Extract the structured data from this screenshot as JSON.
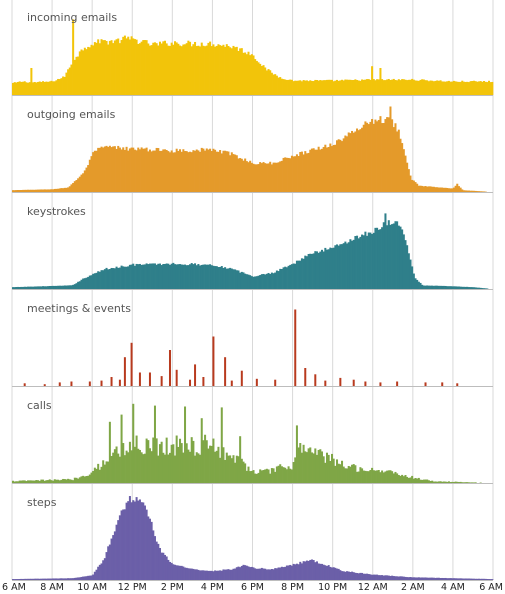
{
  "chart_data": {
    "type": "bar",
    "x_unit": "hour of day",
    "x_range": [
      6,
      30
    ],
    "bin_minutes": 5,
    "grid": true,
    "x_ticks": [
      {
        "label": "6 AM",
        "value": 6
      },
      {
        "label": "8 AM",
        "value": 8
      },
      {
        "label": "10 AM",
        "value": 10
      },
      {
        "label": "12 PM",
        "value": 12
      },
      {
        "label": "2 PM",
        "value": 14
      },
      {
        "label": "4 PM",
        "value": 16
      },
      {
        "label": "6 PM",
        "value": 18
      },
      {
        "label": "8 PM",
        "value": 20
      },
      {
        "label": "10 PM",
        "value": 22
      },
      {
        "label": "12 AM",
        "value": 24
      },
      {
        "label": "2 AM",
        "value": 26
      },
      {
        "label": "4 AM",
        "value": 28
      },
      {
        "label": "6 AM",
        "value": 30
      }
    ],
    "series": [
      {
        "name": "incoming emails",
        "color": "#f2c40a",
        "shape": [
          [
            6,
            0.13
          ],
          [
            6.5,
            0.15
          ],
          [
            7,
            0.14
          ],
          [
            8,
            0.15
          ],
          [
            8.6,
            0.2
          ],
          [
            9.1,
            0.4
          ],
          [
            9.6,
            0.53
          ],
          [
            10.1,
            0.58
          ],
          [
            11,
            0.6
          ],
          [
            12,
            0.62
          ],
          [
            13,
            0.56
          ],
          [
            14,
            0.58
          ],
          [
            15,
            0.57
          ],
          [
            16,
            0.57
          ],
          [
            17,
            0.54
          ],
          [
            18,
            0.45
          ],
          [
            18.6,
            0.3
          ],
          [
            19.3,
            0.2
          ],
          [
            20,
            0.16
          ],
          [
            22,
            0.16
          ],
          [
            24,
            0.17
          ],
          [
            26,
            0.17
          ],
          [
            28,
            0.15
          ],
          [
            30,
            0.15
          ]
        ],
        "spikes": [
          [
            9.04,
            0.84
          ],
          [
            10.45,
            0.62
          ],
          [
            23.9,
            0.32
          ],
          [
            24.3,
            0.3
          ],
          [
            6.95,
            0.3
          ],
          [
            11.6,
            0.66
          ]
        ],
        "noise": 0.06
      },
      {
        "name": "outgoing emails",
        "color": "#e49a2a",
        "shape": [
          [
            6,
            0.02
          ],
          [
            8,
            0.03
          ],
          [
            8.8,
            0.05
          ],
          [
            9.6,
            0.22
          ],
          [
            10.1,
            0.45
          ],
          [
            10.6,
            0.5
          ],
          [
            12,
            0.48
          ],
          [
            14,
            0.46
          ],
          [
            16,
            0.47
          ],
          [
            17,
            0.42
          ],
          [
            18,
            0.32
          ],
          [
            19,
            0.32
          ],
          [
            20,
            0.4
          ],
          [
            21,
            0.47
          ],
          [
            22,
            0.53
          ],
          [
            23,
            0.66
          ],
          [
            23.6,
            0.76
          ],
          [
            24.2,
            0.81
          ],
          [
            24.9,
            0.8
          ],
          [
            25.3,
            0.68
          ],
          [
            25.6,
            0.45
          ],
          [
            25.9,
            0.15
          ],
          [
            26.3,
            0.07
          ],
          [
            28,
            0.04
          ],
          [
            28.2,
            0.09
          ],
          [
            28.5,
            0.02
          ],
          [
            30,
            0.0
          ]
        ],
        "spikes": [
          [
            24.8,
            0.95
          ]
        ],
        "noise": 0.05
      },
      {
        "name": "keystrokes",
        "color": "#2f7f8a",
        "shape": [
          [
            6,
            0.02
          ],
          [
            9,
            0.04
          ],
          [
            9.6,
            0.12
          ],
          [
            10.6,
            0.22
          ],
          [
            12,
            0.27
          ],
          [
            14,
            0.28
          ],
          [
            16,
            0.27
          ],
          [
            17,
            0.22
          ],
          [
            18,
            0.14
          ],
          [
            19,
            0.18
          ],
          [
            20,
            0.28
          ],
          [
            21,
            0.4
          ],
          [
            22,
            0.46
          ],
          [
            23,
            0.56
          ],
          [
            24,
            0.64
          ],
          [
            24.6,
            0.73
          ],
          [
            25.1,
            0.76
          ],
          [
            25.5,
            0.64
          ],
          [
            25.8,
            0.4
          ],
          [
            26.1,
            0.12
          ],
          [
            26.5,
            0.04
          ],
          [
            28,
            0.03
          ],
          [
            29,
            0.02
          ],
          [
            30,
            0.0
          ]
        ],
        "spikes": [
          [
            24.6,
            0.84
          ]
        ],
        "noise": 0.05
      },
      {
        "name": "meetings & events",
        "color": "#b83a1e",
        "shape": [
          [
            6,
            0.02
          ],
          [
            30,
            0.02
          ]
        ],
        "spikes": [
          [
            6.6,
            0.03
          ],
          [
            7.6,
            0.02
          ],
          [
            8.3,
            0.04
          ],
          [
            8.9,
            0.05
          ],
          [
            9.8,
            0.05
          ],
          [
            10.4,
            0.06
          ],
          [
            10.9,
            0.1
          ],
          [
            11.3,
            0.07
          ],
          [
            11.6,
            0.32
          ],
          [
            11.9,
            0.48
          ],
          [
            12.3,
            0.15
          ],
          [
            12.8,
            0.15
          ],
          [
            13.4,
            0.11
          ],
          [
            13.8,
            0.4
          ],
          [
            14.2,
            0.18
          ],
          [
            14.8,
            0.07
          ],
          [
            15.1,
            0.24
          ],
          [
            15.5,
            0.1
          ],
          [
            16.0,
            0.55
          ],
          [
            16.6,
            0.32
          ],
          [
            16.9,
            0.06
          ],
          [
            17.4,
            0.17
          ],
          [
            18.2,
            0.08
          ],
          [
            19.1,
            0.07
          ],
          [
            20.1,
            0.85
          ],
          [
            20.6,
            0.2
          ],
          [
            21.1,
            0.13
          ],
          [
            21.6,
            0.06
          ],
          [
            22.3,
            0.09
          ],
          [
            23.0,
            0.07
          ],
          [
            23.6,
            0.05
          ],
          [
            24.3,
            0.04
          ],
          [
            25.2,
            0.05
          ],
          [
            26.6,
            0.04
          ],
          [
            27.4,
            0.04
          ],
          [
            28.2,
            0.03
          ]
        ],
        "noise": 0.0
      },
      {
        "name": "calls",
        "color": "#7fa646",
        "shape": [
          [
            6,
            0.02
          ],
          [
            9,
            0.04
          ],
          [
            9.6,
            0.08
          ],
          [
            10.3,
            0.18
          ],
          [
            11,
            0.32
          ],
          [
            12,
            0.42
          ],
          [
            14,
            0.42
          ],
          [
            16,
            0.42
          ],
          [
            17,
            0.3
          ],
          [
            18,
            0.13
          ],
          [
            19,
            0.13
          ],
          [
            19.5,
            0.18
          ],
          [
            20,
            0.18
          ],
          [
            20.3,
            0.4
          ],
          [
            20.7,
            0.38
          ],
          [
            21.5,
            0.3
          ],
          [
            22.5,
            0.2
          ],
          [
            23.5,
            0.16
          ],
          [
            25,
            0.12
          ],
          [
            26,
            0.06
          ],
          [
            27,
            0.02
          ],
          [
            30,
            0.0
          ]
        ],
        "spikes": [
          [
            12.0,
            0.88
          ],
          [
            13.1,
            0.86
          ],
          [
            14.6,
            0.85
          ],
          [
            16.4,
            0.84
          ],
          [
            10.8,
            0.68
          ],
          [
            11.4,
            0.76
          ],
          [
            15.4,
            0.72
          ],
          [
            17.3,
            0.52
          ],
          [
            20.2,
            0.64
          ]
        ],
        "noise": 0.28
      },
      {
        "name": "steps",
        "color": "#6b5fa8",
        "shape": [
          [
            6,
            0.01
          ],
          [
            9,
            0.02
          ],
          [
            10,
            0.05
          ],
          [
            10.6,
            0.24
          ],
          [
            11.2,
            0.62
          ],
          [
            11.8,
            0.9
          ],
          [
            12.3,
            0.92
          ],
          [
            12.8,
            0.72
          ],
          [
            13.4,
            0.32
          ],
          [
            14,
            0.18
          ],
          [
            15,
            0.12
          ],
          [
            16,
            0.1
          ],
          [
            17,
            0.12
          ],
          [
            17.6,
            0.17
          ],
          [
            18.2,
            0.13
          ],
          [
            19,
            0.12
          ],
          [
            20,
            0.17
          ],
          [
            20.9,
            0.22
          ],
          [
            21.5,
            0.18
          ],
          [
            22.5,
            0.1
          ],
          [
            24,
            0.06
          ],
          [
            26,
            0.03
          ],
          [
            30,
            0.01
          ]
        ],
        "spikes": [],
        "noise": 0.06
      }
    ]
  }
}
